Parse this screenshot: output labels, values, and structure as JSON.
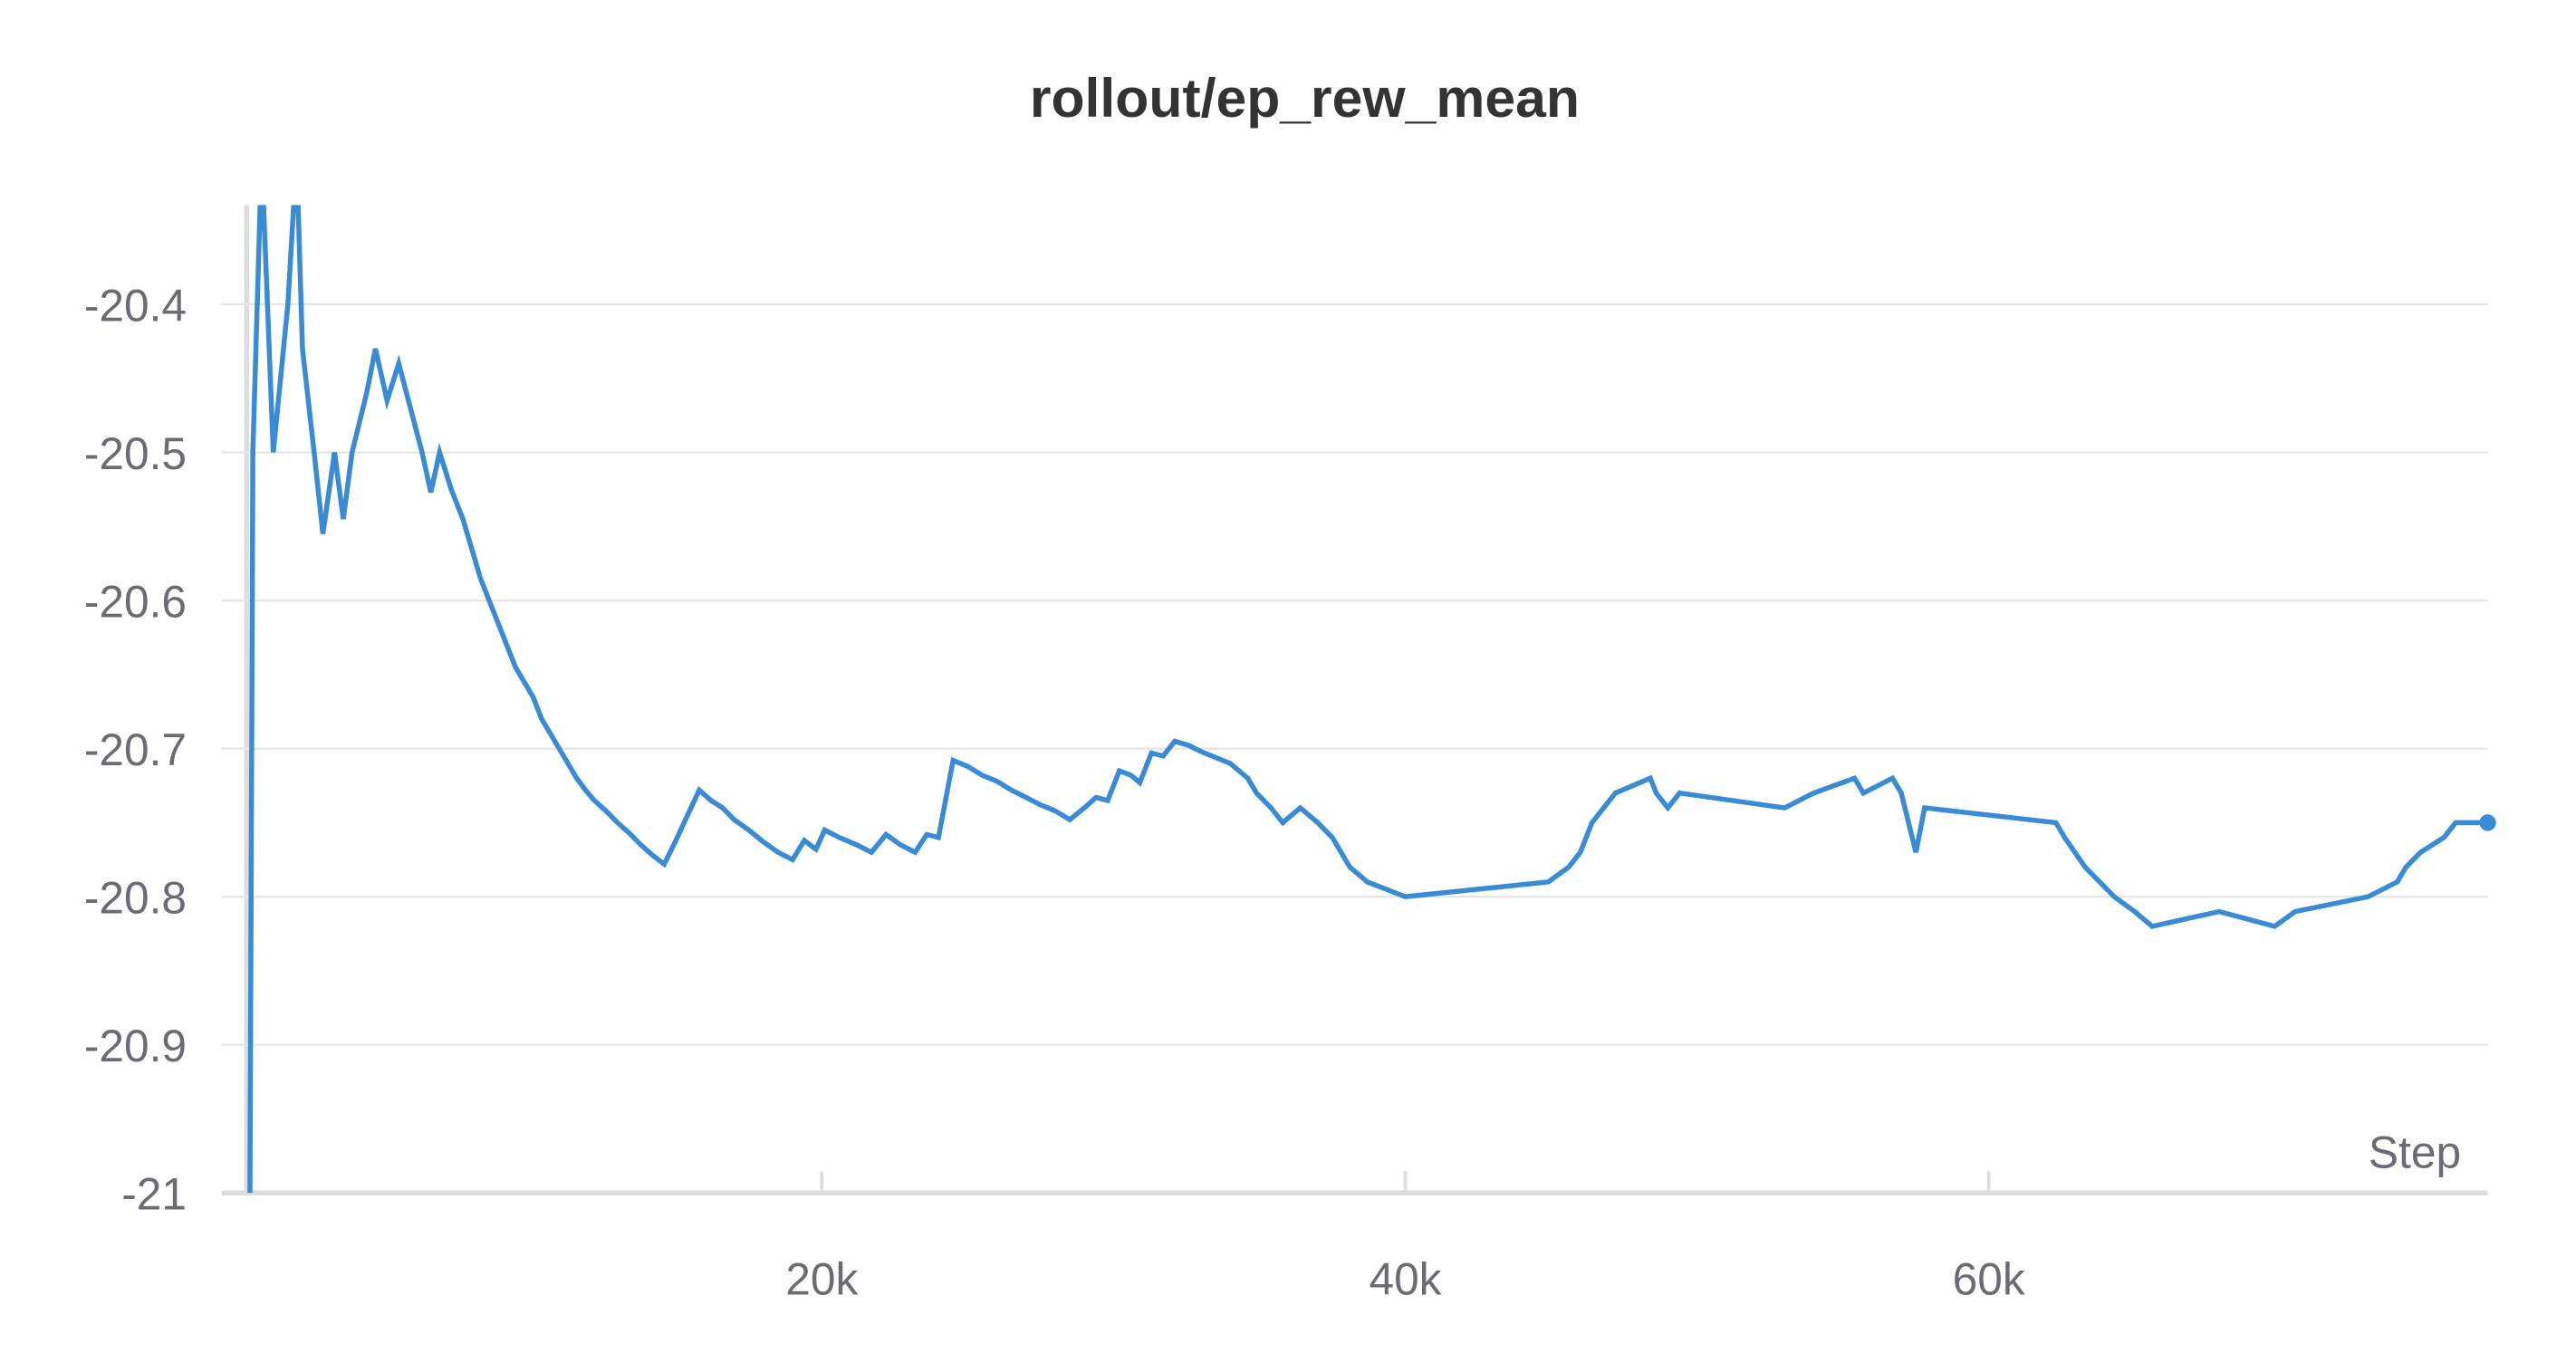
{
  "chart_data": {
    "type": "line",
    "title": "rollout/ep_rew_mean",
    "x_label": "Step",
    "x": [
      400,
      500,
      800,
      1200,
      1700,
      2000,
      2200,
      2600,
      2900,
      3300,
      3600,
      3900,
      4400,
      4700,
      5100,
      5500,
      5900,
      6300,
      6600,
      6900,
      7300,
      7700,
      8000,
      8300,
      8600,
      8900,
      9200,
      9500,
      9800,
      10100,
      10400,
      10700,
      11000,
      11300,
      11600,
      11900,
      12200,
      12600,
      13000,
      13400,
      13800,
      14200,
      14600,
      15000,
      15400,
      15800,
      16200,
      16600,
      17000,
      17500,
      18000,
      18500,
      19000,
      19400,
      19800,
      20100,
      20600,
      21200,
      21700,
      22200,
      22700,
      23200,
      23600,
      24000,
      24500,
      25000,
      25500,
      26000,
      26500,
      27000,
      27500,
      28000,
      28500,
      29000,
      29400,
      29800,
      30200,
      30600,
      30900,
      31300,
      31700,
      32100,
      32600,
      33000,
      33500,
      34000,
      34600,
      34900,
      35400,
      35800,
      36400,
      37000,
      37500,
      37800,
      38100,
      38700,
      40000,
      44900,
      45600,
      46000,
      46400,
      46800,
      47200,
      48400,
      48600,
      49000,
      49400,
      53000,
      54000,
      55400,
      55700,
      56700,
      57000,
      57500,
      57800,
      62300,
      62600,
      63300,
      64300,
      65000,
      65600,
      67900,
      69800,
      70500,
      73000,
      74000,
      74300,
      74800,
      75600,
      76000,
      77100
    ],
    "series": [
      {
        "name": "rollout/ep_rew_mean",
        "color": "#3a8bd6",
        "values": [
          -21,
          -20.5,
          -20.3,
          -20.5,
          -20.4,
          -20.3,
          -20.43,
          -20.5,
          -20.555,
          -20.5,
          -20.545,
          -20.5,
          -20.46,
          -20.43,
          -20.465,
          -20.44,
          -20.47,
          -20.5,
          -20.527,
          -20.5,
          -20.525,
          -20.545,
          -20.565,
          -20.585,
          -20.6,
          -20.615,
          -20.63,
          -20.645,
          -20.655,
          -20.665,
          -20.68,
          -20.69,
          -20.7,
          -20.71,
          -20.72,
          -20.728,
          -20.735,
          -20.742,
          -20.75,
          -20.757,
          -20.765,
          -20.772,
          -20.778,
          -20.762,
          -20.745,
          -20.728,
          -20.735,
          -20.74,
          -20.748,
          -20.755,
          -20.763,
          -20.77,
          -20.775,
          -20.762,
          -20.768,
          -20.755,
          -20.76,
          -20.765,
          -20.77,
          -20.758,
          -20.765,
          -20.77,
          -20.758,
          -20.76,
          -20.708,
          -20.712,
          -20.718,
          -20.722,
          -20.728,
          -20.733,
          -20.738,
          -20.742,
          -20.748,
          -20.74,
          -20.733,
          -20.735,
          -20.715,
          -20.718,
          -20.723,
          -20.703,
          -20.705,
          -20.695,
          -20.698,
          -20.702,
          -20.706,
          -20.71,
          -20.72,
          -20.73,
          -20.74,
          -20.75,
          -20.74,
          -20.75,
          -20.76,
          -20.77,
          -20.78,
          -20.79,
          -20.8,
          -20.79,
          -20.78,
          -20.77,
          -20.75,
          -20.74,
          -20.73,
          -20.72,
          -20.73,
          -20.74,
          -20.73,
          -20.74,
          -20.73,
          -20.72,
          -20.73,
          -20.72,
          -20.73,
          -20.77,
          -20.74,
          -20.75,
          -20.76,
          -20.78,
          -20.8,
          -20.81,
          -20.82,
          -20.81,
          -20.82,
          -20.81,
          -20.8,
          -20.79,
          -20.78,
          -20.77,
          -20.76,
          -20.75,
          -20.75
        ]
      }
    ],
    "xlim": [
      0,
      77100
    ],
    "ylim": [
      -21,
      -20.333
    ],
    "xticks": [
      {
        "value": 20000,
        "label": "20k"
      },
      {
        "value": 40000,
        "label": "40k"
      },
      {
        "value": 60000,
        "label": "60k"
      }
    ],
    "yticks": [
      -21,
      -20.9,
      -20.8,
      -20.7,
      -20.6,
      -20.5,
      -20.4
    ],
    "grid": true
  }
}
